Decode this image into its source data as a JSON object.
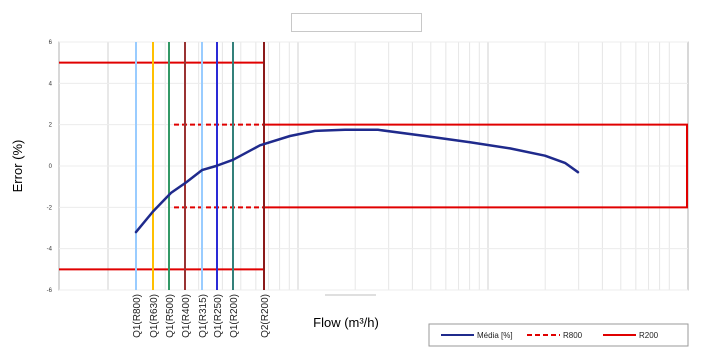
{
  "chart_data": {
    "type": "line",
    "title": "",
    "xlabel": "Flow (m³/h)",
    "ylabel": "Error (%)",
    "ylim": [
      -6,
      6
    ],
    "yticks": [
      6,
      4,
      2,
      0,
      -2,
      -4,
      -6
    ],
    "grid": true,
    "x_scale": "log",
    "legend_position": "bottom-right",
    "flow_markers": [
      {
        "label": "Q1(R800)",
        "color": "#99ccff"
      },
      {
        "label": "Q1(R630)",
        "color": "#ffc000"
      },
      {
        "label": "Q1(R500)",
        "color": "#339966"
      },
      {
        "label": "Q1(R400)",
        "color": "#993333"
      },
      {
        "label": "Q1(R315)",
        "color": "#99ccff"
      },
      {
        "label": "Q1(R250)",
        "color": "#2a2ad6"
      },
      {
        "label": "Q1(R200)",
        "color": "#33807a"
      },
      {
        "label": "Q2(R200)",
        "color": "#8b1a1a"
      }
    ],
    "series": [
      {
        "name": "Média [%]",
        "color": "#1f2a8c",
        "style": "solid",
        "values": [
          -3.2,
          -2.2,
          -1.3,
          -0.8,
          -0.2,
          0.0,
          0.3,
          1.0,
          1.45,
          1.7,
          1.75,
          1.75,
          1.45,
          1.15,
          0.85,
          0.5,
          0.15,
          -0.3
        ]
      },
      {
        "name": "R800",
        "color": "#e00000",
        "style": "dashed",
        "upper": 2,
        "lower": -2
      },
      {
        "name": "R200",
        "color": "#e00000",
        "style": "solid",
        "upper": [
          5,
          2
        ],
        "lower": [
          -5,
          -2
        ]
      }
    ]
  },
  "legend": {
    "items": [
      {
        "label": "Média [%]",
        "color": "#1f2a8c",
        "dash": ""
      },
      {
        "label": "R800",
        "color": "#e00000",
        "dash": "5,3"
      },
      {
        "label": "R200",
        "color": "#e00000",
        "dash": ""
      }
    ]
  }
}
